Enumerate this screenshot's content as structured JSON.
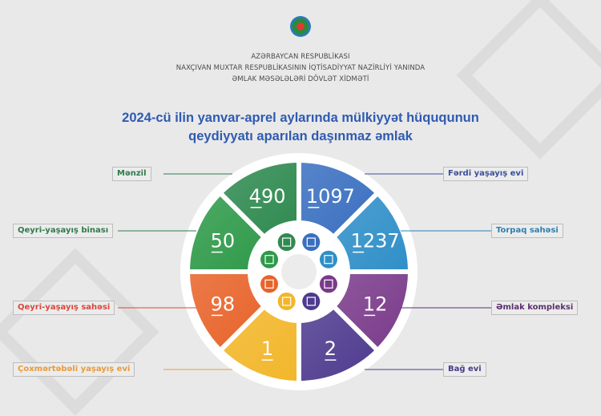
{
  "header": {
    "line1": "AZƏRBAYCAN RESPUBLİKASI",
    "line2": "NAXÇIVAN MUXTAR RESPUBLİKASININ İQTİSADİYYAT NAZİRLİYİ YANINDA",
    "line3": "ƏMLAK MƏSƏLƏLƏRİ DÖVLƏT XİDMƏTİ"
  },
  "title": {
    "line1": "2024-cü ilin yanvar-aprel aylarında mülkiyyət hüququnun",
    "line2": "qeydiyyatı aparılan daşınmaz əmlak"
  },
  "chart_data": {
    "type": "pie",
    "title": "2024-cü ilin yanvar-aprel aylarında mülkiyyət hüququnun qeydiyyatı aparılan daşınmaz əmlak",
    "categories": [
      "Fərdi yaşayış evi",
      "Torpaq sahəsi",
      "Əmlak kompleksi",
      "Bağ evi",
      "Çoxmərtəbəli yaşayış evi",
      "Qeyri-yaşayış sahəsi",
      "Qeyri-yaşayış binası",
      "Mənzil"
    ],
    "values": [
      1097,
      1237,
      12,
      2,
      1,
      98,
      50,
      490
    ],
    "colors": [
      "#3a6fc0",
      "#2f8fc8",
      "#7a3a8a",
      "#4e3a8e",
      "#f2b62a",
      "#e8632a",
      "#2f9a4a",
      "#2f8a50"
    ],
    "icons": [
      "house-icon",
      "land-plot-icon",
      "factory-complex-icon",
      "garden-house-icon",
      "apartment-building-icon",
      "floor-area-icon",
      "office-buildings-icon",
      "apartment-icon"
    ],
    "label_colors": [
      "#3a4f9a",
      "#2f7fb0",
      "#5a2f6e",
      "#4a3a88",
      "#e99a3a",
      "#d9473a",
      "#2f7a4a",
      "#2f7a4a"
    ]
  }
}
